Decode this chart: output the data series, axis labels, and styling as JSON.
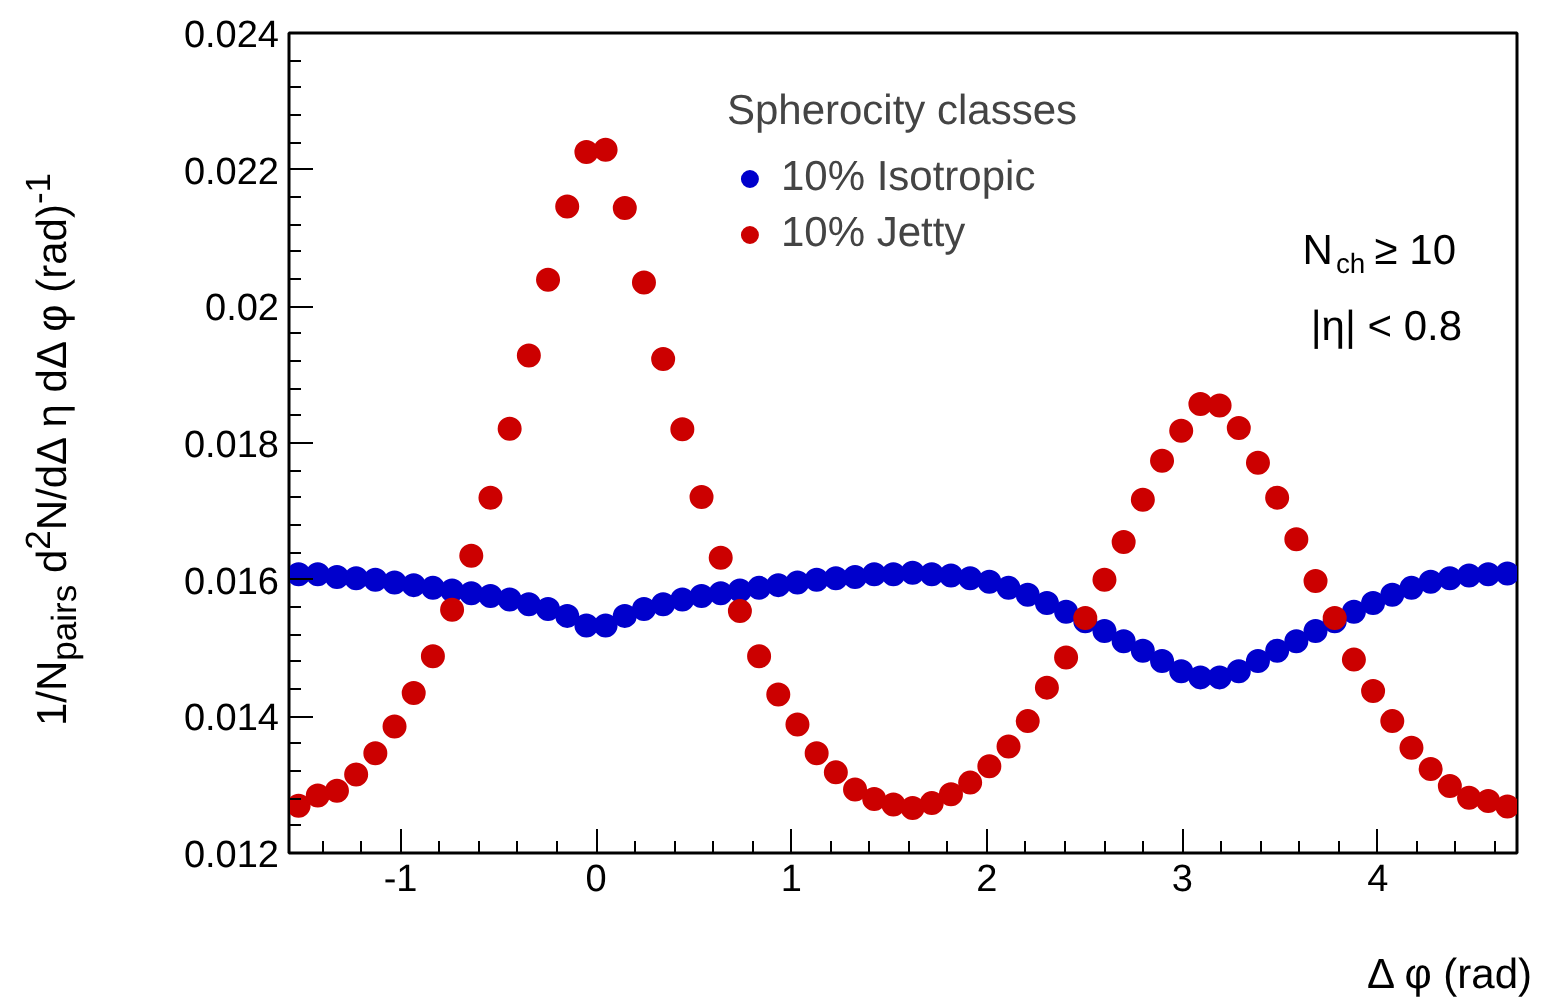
{
  "chart_data": {
    "type": "scatter",
    "xlabel": "Δ φ (rad)",
    "ylabel": "1/N$_{pairs}$ d$^{2}$N/dΔ η dΔ φ (rad)$^{-1}$",
    "legend_title": "Spherocity classes",
    "legend": "top",
    "marker": "circle",
    "grid": false,
    "annotations": [
      "N$_{ch}$ ≥ 10",
      "|η| < 0.8"
    ],
    "x": [
      -1.5217,
      -1.4235,
      -1.3254,
      -1.2272,
      -1.129,
      -1.0308,
      -0.9327,
      -0.8345,
      -0.7363,
      -0.6381,
      -0.54,
      -0.4418,
      -0.3436,
      -0.2454,
      -0.1473,
      -0.0491,
      0.0491,
      0.1473,
      0.2454,
      0.3436,
      0.4418,
      0.54,
      0.6381,
      0.7363,
      0.8345,
      0.9327,
      1.0308,
      1.129,
      1.2272,
      1.3254,
      1.4235,
      1.5217,
      1.6199,
      1.7181,
      1.8162,
      1.9144,
      2.0126,
      2.1108,
      2.2089,
      2.3071,
      2.4053,
      2.5035,
      2.6016,
      2.6998,
      2.798,
      2.8962,
      2.9943,
      3.0925,
      3.1907,
      3.2889,
      3.387,
      3.4852,
      3.5834,
      3.6816,
      3.7797,
      3.8779,
      3.9761,
      4.0743,
      4.1724,
      4.2706,
      4.3688,
      4.467,
      4.5651,
      4.6633
    ],
    "series": [
      {
        "name": "10% Isotropic",
        "color": "#0000cc",
        "values": [
          0.01608,
          0.01608,
          0.01604,
          0.01602,
          0.016,
          0.01596,
          0.01592,
          0.01588,
          0.01584,
          0.0158,
          0.01576,
          0.01571,
          0.01564,
          0.01557,
          0.01547,
          0.01533,
          0.01533,
          0.01547,
          0.01557,
          0.01564,
          0.01571,
          0.01576,
          0.0158,
          0.01584,
          0.01588,
          0.01592,
          0.01596,
          0.016,
          0.01602,
          0.01604,
          0.01608,
          0.01608,
          0.0161,
          0.01608,
          0.01606,
          0.01602,
          0.01597,
          0.01588,
          0.01578,
          0.01566,
          0.01553,
          0.01539,
          0.01525,
          0.0151,
          0.01496,
          0.01481,
          0.01466,
          0.01457,
          0.01457,
          0.01466,
          0.01481,
          0.01496,
          0.0151,
          0.01525,
          0.01539,
          0.01553,
          0.01566,
          0.01578,
          0.01588,
          0.01597,
          0.01602,
          0.01606,
          0.01608,
          0.01609
        ]
      },
      {
        "name": "10% Jetty",
        "color": "#cc0000",
        "values": [
          0.01269,
          0.01284,
          0.01291,
          0.01315,
          0.01346,
          0.01385,
          0.01434,
          0.01488,
          0.01556,
          0.01635,
          0.0172,
          0.01821,
          0.01928,
          0.02039,
          0.02146,
          0.02226,
          0.02229,
          0.02144,
          0.02035,
          0.01923,
          0.0182,
          0.01721,
          0.01632,
          0.01554,
          0.01488,
          0.01432,
          0.01388,
          0.01346,
          0.01318,
          0.01293,
          0.01279,
          0.01271,
          0.01266,
          0.01273,
          0.01286,
          0.01303,
          0.01327,
          0.01356,
          0.01393,
          0.01442,
          0.01486,
          0.01544,
          0.016,
          0.01655,
          0.01717,
          0.01774,
          0.01818,
          0.01857,
          0.01855,
          0.01822,
          0.01771,
          0.0172,
          0.01659,
          0.01598,
          0.01544,
          0.01483,
          0.01437,
          0.01393,
          0.01354,
          0.01323,
          0.01298,
          0.01281,
          0.01276,
          0.01268
        ]
      }
    ],
    "xlim": [
      -1.5708,
      4.7124
    ],
    "xticks": [
      -1,
      0,
      1,
      2,
      3,
      4
    ],
    "ylim": [
      0.012,
      0.024
    ],
    "yticks": [
      0.012,
      0.014,
      0.016,
      0.018,
      0.02,
      0.022,
      0.024
    ]
  }
}
